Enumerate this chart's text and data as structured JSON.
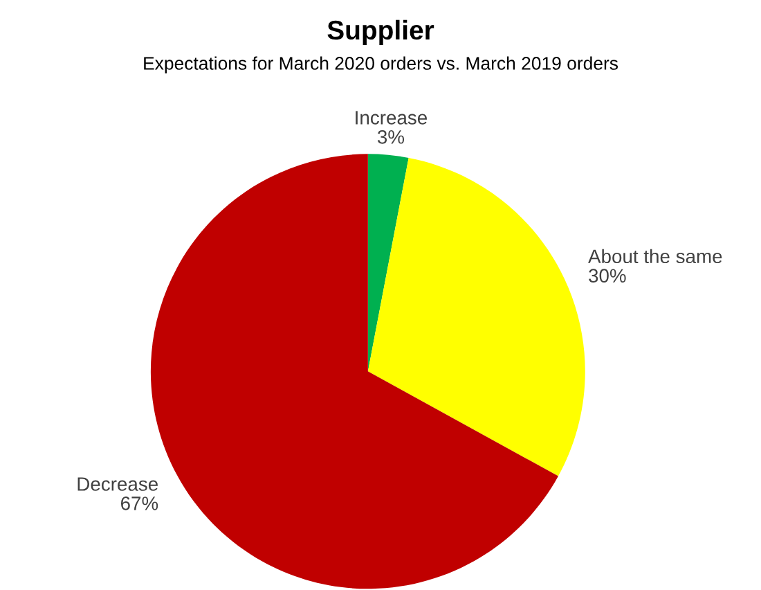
{
  "chart_data": {
    "type": "pie",
    "title": "Supplier",
    "subtitle": "Expectations for March 2020 orders vs. March 2019 orders",
    "categories": [
      "Increase",
      "About the same",
      "Decrease"
    ],
    "values": [
      3,
      30,
      67
    ],
    "value_labels": [
      "3%",
      "30%",
      "67%"
    ],
    "colors": [
      "#00b050",
      "#ffff00",
      "#c00000"
    ],
    "legend": false
  }
}
